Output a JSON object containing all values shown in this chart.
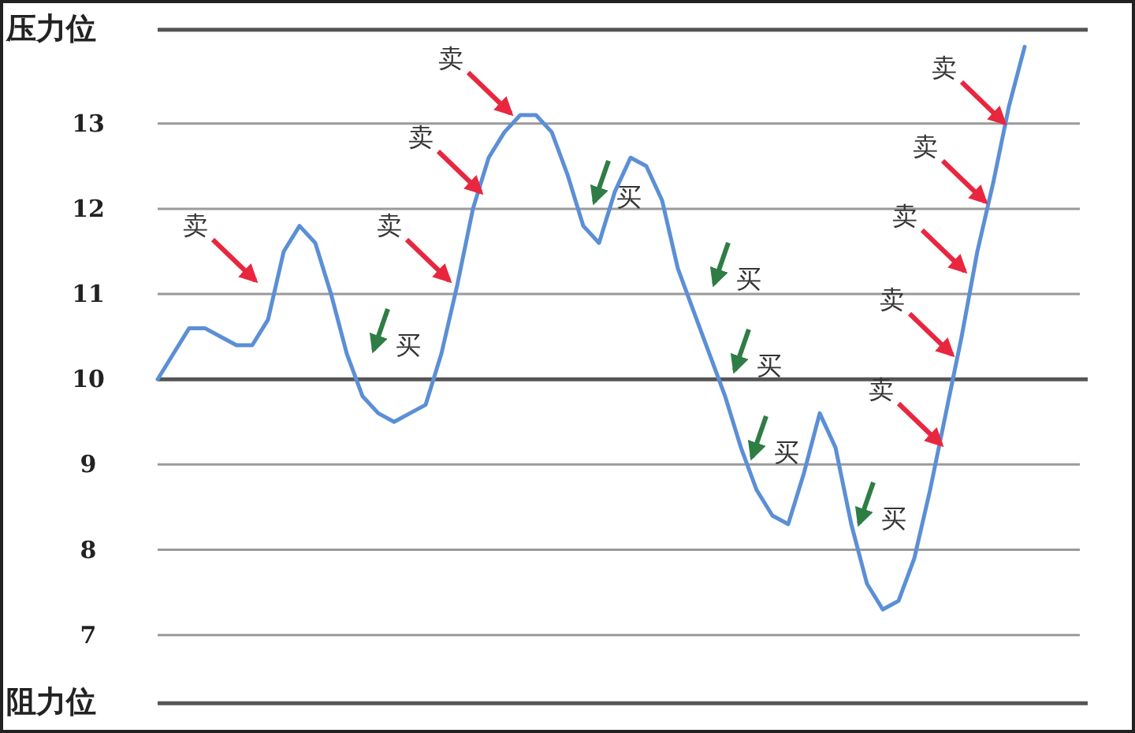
{
  "chart_data": {
    "type": "line",
    "categories": [
      null,
      null,
      null,
      null,
      null,
      null,
      null,
      null,
      null,
      null,
      null,
      null,
      null,
      null,
      null,
      null,
      null,
      null,
      null,
      null,
      null,
      null,
      null,
      null,
      null,
      null,
      null,
      null,
      null,
      null,
      null,
      null,
      null,
      null,
      null,
      null,
      null,
      null,
      null,
      null,
      null,
      null,
      null,
      null,
      null,
      null,
      null,
      null,
      null,
      null,
      null,
      null,
      null,
      null,
      null,
      null
    ],
    "series": [
      {
        "color": "#5b8fd6",
        "values": [
          10.0,
          10.3,
          10.6,
          10.6,
          10.5,
          10.4,
          10.4,
          10.7,
          11.5,
          11.8,
          11.6,
          11.0,
          10.3,
          9.8,
          9.6,
          9.5,
          9.6,
          9.7,
          10.3,
          11.1,
          12.0,
          12.6,
          12.9,
          13.1,
          13.1,
          12.9,
          12.4,
          11.8,
          11.6,
          12.2,
          12.6,
          12.5,
          12.1,
          11.3,
          10.8,
          10.3,
          9.8,
          9.2,
          8.7,
          8.4,
          8.3,
          8.9,
          9.6,
          9.2,
          8.3,
          7.6,
          7.3,
          7.4,
          7.9,
          8.7,
          9.6,
          10.5,
          11.5,
          12.3,
          13.2,
          13.9
        ]
      }
    ],
    "ylim": [
      5.85,
      14.45
    ],
    "yticks": [
      7,
      8,
      9,
      10,
      11,
      12,
      13
    ],
    "tick_labels": "y",
    "grid": "y",
    "ref_lines": [
      {
        "axis": "y",
        "value": 14.1,
        "label": "压力位"
      },
      {
        "axis": "y",
        "value": 10
      },
      {
        "axis": "y",
        "value": 6.2,
        "label": "阻力位"
      }
    ],
    "annotations": [
      "卖",
      "卖",
      "卖",
      "卖",
      "卖",
      "卖",
      "卖",
      "卖",
      "卖",
      "买",
      "买",
      "买",
      "买",
      "买",
      "买"
    ]
  }
}
